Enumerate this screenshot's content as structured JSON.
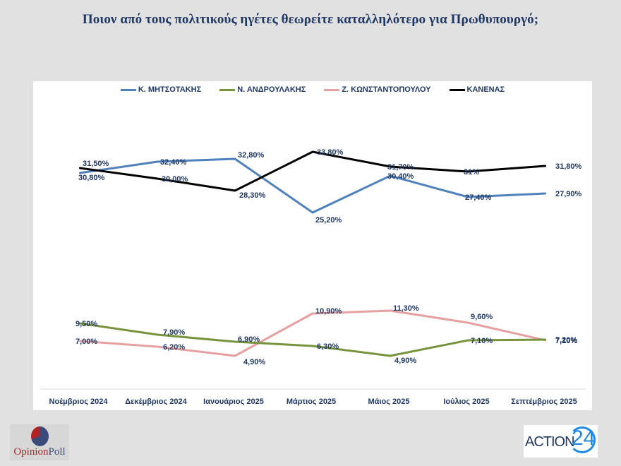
{
  "title": "Ποιον από τους πολιτικούς ηγέτες θεωρείτε καταλληλότερο για Πρωθυπουργό;",
  "logos": {
    "left_a": "Opinion",
    "left_b": "Poll",
    "right_a": "ACTION",
    "right_b": "24"
  },
  "chart_data": {
    "type": "line",
    "title": "Ποιον από τους πολιτικούς ηγέτες θεωρείτε καταλληλότερο για Πρωθυπουργό;",
    "xlabel": "",
    "ylabel": "",
    "ylim": [
      0,
      40
    ],
    "grid": false,
    "legend_position": "top",
    "categories": [
      "Νοέμβριος 2024",
      "Δεκέμβριος  2024",
      "Ιανουάριος 2025",
      "Μάρτιος 2025",
      "Μάιος 2025",
      "Ιούλιος 2025",
      "Σεπτέμβριος 2025"
    ],
    "series": [
      {
        "name": "Κ. ΜΗΤΣΟΤΑΚΗΣ",
        "color": "#4f81bd",
        "values": [
          30.8,
          32.4,
          32.8,
          25.2,
          30.4,
          27.4,
          27.9
        ],
        "labels": [
          "30,80%",
          "32,40%",
          "32,80%",
          "25,20%",
          "30,40%",
          "27,40%",
          "27,90%"
        ]
      },
      {
        "name": "Ν. ΑΝΔΡΟΥΛΑΚΗΣ",
        "color": "#77933c",
        "values": [
          9.5,
          7.9,
          6.9,
          6.3,
          4.9,
          7.1,
          7.2
        ],
        "labels": [
          "9,50%",
          "7,90%",
          "6,90%",
          "6,30%",
          "4,90%",
          "7,10%",
          "7,20%"
        ]
      },
      {
        "name": "Ζ. ΚΩΝΣΤΑΝΤΟΠΟΥΛΟΥ",
        "color": "#e6a0a0",
        "values": [
          7.0,
          6.2,
          4.9,
          10.9,
          11.3,
          9.6,
          7.1
        ],
        "labels": [
          "7,00%",
          "6,20%",
          "4,90%",
          "10,90%",
          "11,30%",
          "9,60%",
          "7,10%"
        ]
      },
      {
        "name": "ΚΑΝΕΝΑΣ",
        "color": "#000000",
        "values": [
          31.5,
          30.0,
          28.3,
          33.8,
          31.7,
          31.0,
          31.8
        ],
        "labels": [
          "31,50%",
          "30,00%",
          "28,30%",
          "33,80%",
          "31,70%",
          "31%",
          "31,80%"
        ]
      }
    ]
  }
}
